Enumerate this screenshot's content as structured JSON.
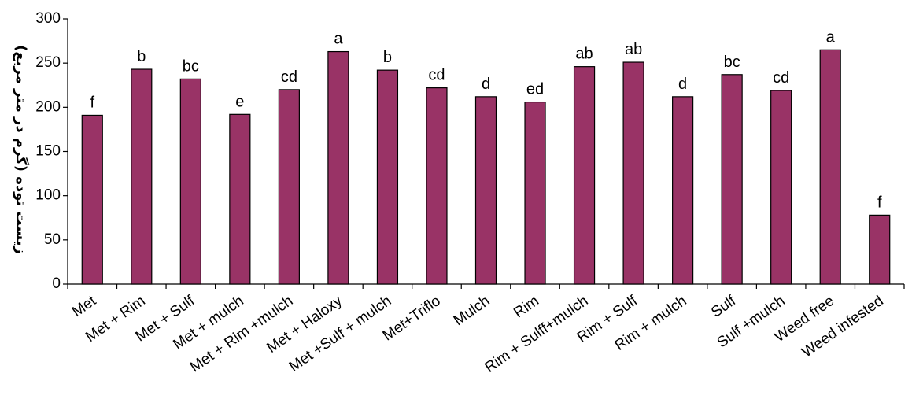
{
  "chart_data": {
    "type": "bar",
    "title": "",
    "xlabel": "",
    "ylabel": "زیست توده (گرم در متر مربع)",
    "ylim": [
      0,
      300
    ],
    "yticks": [
      0,
      50,
      100,
      150,
      200,
      250,
      300
    ],
    "grid": false,
    "bar_color": "#993366",
    "categories": [
      "Met",
      "Met + Rim",
      "Met + Sulf",
      "Met + mulch",
      "Met + Rim +mulch",
      "Met + Haloxy",
      "Met +Sulf + mulch",
      "Met+Triflo",
      "Mulch",
      "Rim",
      "Rim + Sulff+mulch",
      "Rim + Sulf",
      "Rim + mulch",
      "Sulf",
      "Sulf +mulch",
      "Weed free",
      "Weed infested"
    ],
    "values": [
      191,
      243,
      232,
      192,
      220,
      263,
      242,
      222,
      212,
      206,
      246,
      251,
      212,
      237,
      219,
      265,
      78
    ],
    "letters": [
      "f",
      "b",
      "bc",
      "e",
      "cd",
      "a",
      "b",
      "cd",
      "d",
      "ed",
      "ab",
      "ab",
      "d",
      "bc",
      "cd",
      "a",
      "f"
    ]
  }
}
